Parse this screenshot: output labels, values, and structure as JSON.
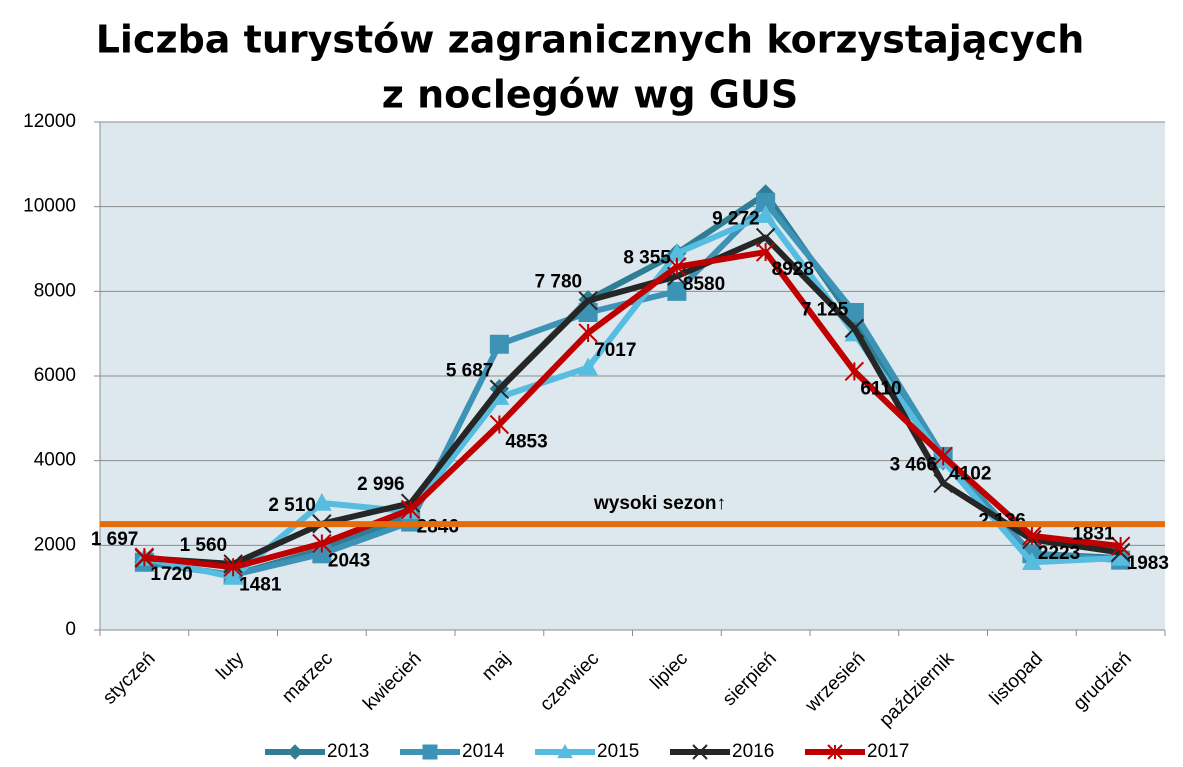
{
  "chart_data": {
    "type": "line",
    "title": [
      "Liczba turystów zagranicznych korzystających",
      "z noclegów wg GUS"
    ],
    "categories": [
      "styczeń",
      "luty",
      "marzec",
      "kwiecień",
      "maj",
      "czerwiec",
      "lipiec",
      "sierpień",
      "wrzesień",
      "październik",
      "listopad",
      "grudzień"
    ],
    "series": [
      {
        "name": "2013",
        "color": "#2f7f94",
        "marker": "diamond",
        "values": [
          1600,
          1300,
          1900,
          2700,
          5700,
          7800,
          8900,
          10300,
          7300,
          4000,
          1800,
          1700
        ]
      },
      {
        "name": "2014",
        "color": "#3d93b5",
        "marker": "square",
        "values": [
          1600,
          1300,
          1800,
          2550,
          6750,
          7500,
          8000,
          10100,
          7500,
          4100,
          1800,
          1650
        ]
      },
      {
        "name": "2015",
        "color": "#56bde0",
        "marker": "triangle",
        "values": [
          1700,
          1250,
          3000,
          2800,
          5500,
          6200,
          8900,
          9800,
          7000,
          4000,
          1600,
          1700
        ]
      },
      {
        "name": "2016",
        "color": "#262626",
        "marker": "x",
        "values": [
          1697,
          1560,
          2510,
          2996,
          5687,
          7780,
          8355,
          9272,
          7125,
          3466,
          2136,
          1831
        ],
        "value_labels": [
          "1 697",
          "1 560",
          "2 510",
          "2 996",
          "5 687",
          "7 780",
          "8 355",
          "9 272",
          "7 125",
          "3 466",
          "2 136",
          "1831"
        ]
      },
      {
        "name": "2017",
        "color": "#c00000",
        "marker": "star",
        "values": [
          1720,
          1481,
          2043,
          2846,
          4853,
          7017,
          8580,
          8928,
          6110,
          4102,
          2223,
          1983
        ]
      }
    ],
    "annotation": {
      "text": "wysoki sezon↑",
      "value": 2500,
      "color": "#e46c0a"
    },
    "ylim": [
      0,
      12000
    ],
    "yticks": [
      0,
      2000,
      4000,
      6000,
      8000,
      10000,
      12000
    ],
    "grid": true,
    "legend": "bottom"
  }
}
